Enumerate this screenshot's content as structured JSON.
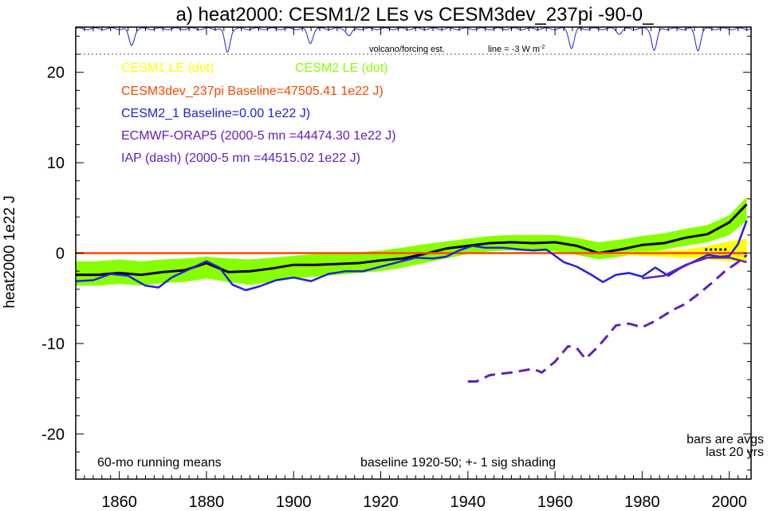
{
  "chart_data": {
    "type": "line",
    "title": "a) heat2000: CESM1/2 LEs vs CESM3dev_237pi -90-0_",
    "ylabel": "heat2000 1e22 J",
    "xlabel": "",
    "xlim": [
      1850,
      2005
    ],
    "ylim": [
      -25,
      25
    ],
    "x_ticks": [
      1860,
      1880,
      1900,
      1920,
      1940,
      1960,
      1980,
      2000
    ],
    "y_ticks": [
      -20,
      -10,
      0,
      10,
      20
    ],
    "legend_entries": [
      {
        "text": "CESM1 LE (dot)",
        "color": "#ffff00"
      },
      {
        "text": "CESM2 LE (dot)",
        "color": "#88ff00"
      },
      {
        "text": "CESM3dev_237pi Baseline=47505.41 1e22 J)",
        "color": "#ff4500"
      },
      {
        "text": "CESM2_1 Baseline=0.00 1e22 J)",
        "color": "#2020e0"
      },
      {
        "text": "ECMWF-ORAP5 (2000-5 mn =44474.30 1e22 J)",
        "color": "#6020c0"
      },
      {
        "text": "IAP (dash) (2000-5 mn =44515.02 1e22 J)",
        "color": "#6020c0"
      }
    ],
    "annotations": {
      "volcano_label": "volcano/forcing est.",
      "line_label_prefix": "line = -3 W m",
      "line_label_sup": "-2",
      "bottom_left": "60-mo running means",
      "bottom_center": "baseline 1920-50; +- 1 sig shading",
      "bars_line1": "bars are avgs",
      "bars_line2": "last 20 yrs"
    },
    "volcano_dips": [
      {
        "x": 1862,
        "depth": 0.7
      },
      {
        "x": 1884,
        "depth": 1.0
      },
      {
        "x": 1903,
        "depth": 0.6
      },
      {
        "x": 1912,
        "depth": 0.3
      },
      {
        "x": 1963,
        "depth": 0.8
      },
      {
        "x": 1974,
        "depth": 0.2
      },
      {
        "x": 1982,
        "depth": 0.9
      },
      {
        "x": 1992,
        "depth": 0.9
      }
    ],
    "cesm2_band": {
      "x": [
        1850,
        1855,
        1860,
        1865,
        1870,
        1875,
        1880,
        1885,
        1890,
        1895,
        1900,
        1905,
        1910,
        1915,
        1920,
        1925,
        1930,
        1935,
        1940,
        1945,
        1950,
        1955,
        1960,
        1965,
        1970,
        1975,
        1980,
        1985,
        1990,
        1995,
        2000,
        2004
      ],
      "upper": [
        -0.9,
        -0.9,
        -0.7,
        -0.9,
        -0.7,
        -0.6,
        -0.4,
        -0.6,
        -0.7,
        -0.5,
        -0.3,
        -0.1,
        0.0,
        0.1,
        0.3,
        0.6,
        1.0,
        1.3,
        1.6,
        1.9,
        2.0,
        2.0,
        2.0,
        1.7,
        1.2,
        1.5,
        1.9,
        2.2,
        2.7,
        3.1,
        4.2,
        6.2
      ],
      "lower": [
        -3.6,
        -3.6,
        -3.4,
        -3.6,
        -3.3,
        -3.2,
        -2.8,
        -3.2,
        -3.5,
        -3.2,
        -2.8,
        -2.6,
        -2.4,
        -2.2,
        -2.0,
        -1.6,
        -1.1,
        -0.6,
        -0.1,
        0.2,
        0.3,
        0.2,
        0.2,
        -0.2,
        -0.7,
        -0.4,
        0.0,
        0.4,
        0.8,
        1.2,
        2.0,
        3.6
      ]
    },
    "cesm1_band": {
      "x": [
        1920,
        1930,
        1940,
        1950,
        1960,
        1970,
        1980,
        1990,
        1995,
        2000,
        2004
      ],
      "upper": [
        0.1,
        0.1,
        0.1,
        0.1,
        0.1,
        0.1,
        0.2,
        0.4,
        0.8,
        1.3,
        1.6
      ],
      "lower": [
        -0.1,
        -0.1,
        -0.1,
        -0.1,
        -0.1,
        -0.1,
        -0.3,
        -0.5,
        -0.7,
        -0.9,
        -1.0
      ]
    },
    "series": [
      {
        "name": "CESM2 LE (mean)",
        "color": "#000000",
        "x": [
          1850,
          1855,
          1860,
          1865,
          1870,
          1875,
          1880,
          1885,
          1890,
          1895,
          1900,
          1905,
          1910,
          1915,
          1920,
          1925,
          1930,
          1935,
          1940,
          1945,
          1950,
          1955,
          1960,
          1965,
          1970,
          1975,
          1980,
          1985,
          1990,
          1995,
          2000,
          2004
        ],
        "y": [
          -2.4,
          -2.4,
          -2.2,
          -2.4,
          -2.1,
          -1.9,
          -1.1,
          -2.1,
          -2.0,
          -1.7,
          -1.3,
          -1.3,
          -1.2,
          -1.1,
          -0.8,
          -0.6,
          -0.1,
          0.5,
          0.8,
          1.1,
          1.2,
          1.1,
          1.2,
          0.8,
          0.0,
          0.4,
          0.9,
          1.1,
          1.7,
          2.1,
          3.4,
          5.4
        ]
      },
      {
        "name": "CESM3dev_237pi",
        "color": "#ff4500",
        "x": [
          1850,
          2004
        ],
        "y": [
          0.0,
          0.0
        ]
      },
      {
        "name": "CESM2_1",
        "color": "#2020e0",
        "x": [
          1850,
          1854,
          1858,
          1862,
          1866,
          1869,
          1872,
          1876,
          1880,
          1883,
          1886,
          1889,
          1892,
          1896,
          1900,
          1904,
          1908,
          1912,
          1916,
          1920,
          1924,
          1928,
          1932,
          1935,
          1938,
          1941,
          1944,
          1948,
          1952,
          1955,
          1958,
          1962,
          1965,
          1968,
          1971,
          1974,
          1977,
          1980,
          1983,
          1986,
          1989,
          1992,
          1995,
          1998,
          2000,
          2002,
          2004
        ],
        "y": [
          -3.1,
          -3.0,
          -2.3,
          -2.5,
          -3.6,
          -3.8,
          -2.7,
          -1.8,
          -0.9,
          -1.6,
          -3.5,
          -4.1,
          -3.7,
          -3.0,
          -2.7,
          -3.1,
          -2.3,
          -2.0,
          -2.0,
          -1.5,
          -1.0,
          -0.5,
          -0.6,
          -0.4,
          0.3,
          0.8,
          0.6,
          0.6,
          0.4,
          0.3,
          0.4,
          -1.0,
          -1.5,
          -2.3,
          -3.2,
          -2.4,
          -2.2,
          -2.6,
          -1.6,
          -2.5,
          -1.6,
          -0.9,
          -0.2,
          -0.4,
          -0.3,
          1.0,
          3.6
        ]
      },
      {
        "name": "ECMWF-ORAP5",
        "color": "#6020c0",
        "x": [
          1980,
          1985,
          1990,
          1995,
          2000,
          2004
        ],
        "y": [
          -2.8,
          -2.5,
          -1.3,
          -0.5,
          -0.5,
          -1.0
        ]
      },
      {
        "name": "IAP",
        "color": "#6020c0",
        "dashed": true,
        "x": [
          1940,
          1942,
          1945,
          1950,
          1955,
          1957,
          1960,
          1963,
          1965,
          1967,
          1970,
          1974,
          1977,
          1980,
          1983,
          1987,
          1990,
          1993,
          1996,
          1999,
          2002,
          2004
        ],
        "y": [
          -14.2,
          -14.2,
          -13.5,
          -13.2,
          -12.8,
          -13.2,
          -12.0,
          -10.3,
          -10.5,
          -11.7,
          -10.3,
          -8.0,
          -7.8,
          -8.2,
          -7.5,
          -6.3,
          -5.6,
          -4.5,
          -3.3,
          -2.0,
          -1.0,
          -0.2
        ]
      }
    ],
    "avg_bars": [
      {
        "name": "CESM3dev_237pi",
        "color": "#ff4500",
        "x": 2002,
        "y": 0.0
      },
      {
        "name": "CESM1 LE",
        "color": "#000000",
        "x": 1999,
        "y": 0.4
      }
    ]
  }
}
